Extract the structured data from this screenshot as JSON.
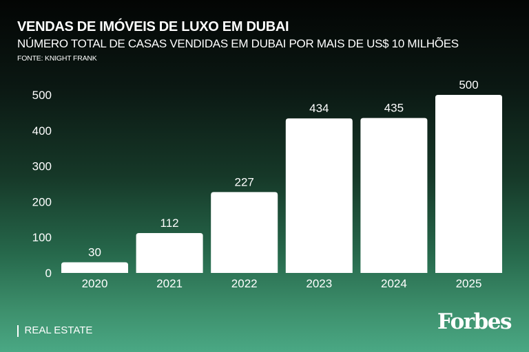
{
  "header": {
    "title": "VENDAS DE IMÓVEIS DE LUXO EM DUBAI",
    "subtitle": "NÚMERO TOTAL DE CASAS VENDIDAS EM DUBAI POR MAIS DE US$ 10 MILHÕES",
    "source": "FONTE: KNIGHT FRANK"
  },
  "footer": {
    "section": "REAL ESTATE",
    "logo": "Forbes"
  },
  "chart_data": {
    "type": "bar",
    "title": "VENDAS DE IMÓVEIS DE LUXO EM DUBAI",
    "categories": [
      "2020",
      "2021",
      "2022",
      "2023",
      "2024",
      "2025"
    ],
    "values": [
      30,
      112,
      227,
      434,
      435,
      500
    ],
    "yticks": [
      0,
      100,
      200,
      300,
      400,
      500
    ],
    "ylim": [
      0,
      500
    ],
    "xlabel": "",
    "ylabel": "",
    "grid": false,
    "bar_color": "#ffffff"
  }
}
